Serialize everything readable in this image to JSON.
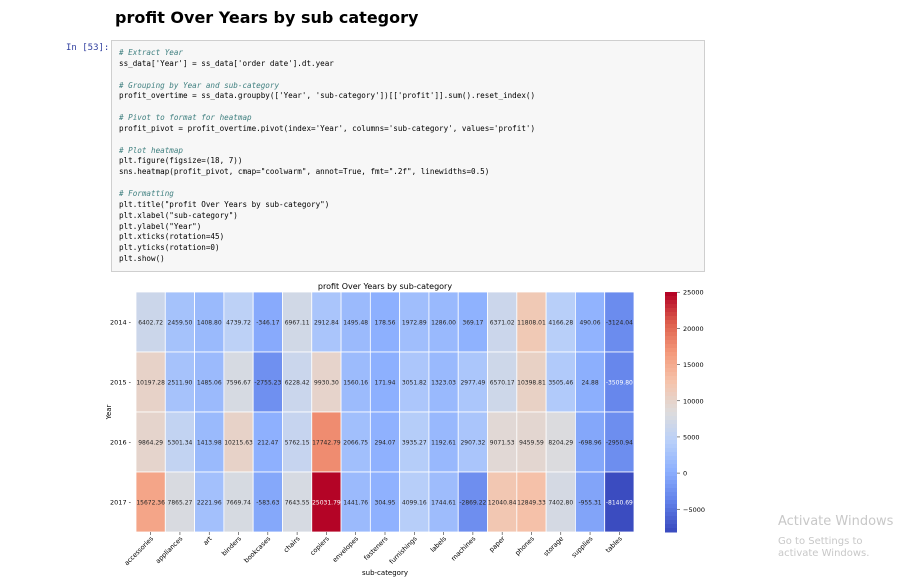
{
  "notebook": {
    "heading": "profit Over Years by sub category",
    "prompt": "In [53]:",
    "code_lines": [
      {
        "t": "# Extract Year",
        "c": true
      },
      {
        "t": "ss_data['Year'] = ss_data['order date'].dt.year"
      },
      {
        "t": ""
      },
      {
        "t": "# Grouping by Year and sub-category",
        "c": true
      },
      {
        "t": "profit_overtime = ss_data.groupby(['Year', 'sub-category'])[['profit']].sum().reset_index()"
      },
      {
        "t": ""
      },
      {
        "t": "# Pivot to format for heatmap",
        "c": true
      },
      {
        "t": "profit_pivot = profit_overtime.pivot(index='Year', columns='sub-category', values='profit')"
      },
      {
        "t": ""
      },
      {
        "t": "# Plot heatmap",
        "c": true
      },
      {
        "t": "plt.figure(figsize=(18, 7))"
      },
      {
        "t": "sns.heatmap(profit_pivot, cmap=\"coolwarm\", annot=True, fmt=\".2f\", linewidths=0.5)"
      },
      {
        "t": ""
      },
      {
        "t": "# Formatting",
        "c": true
      },
      {
        "t": "plt.title(\"profit Over Years by sub-category\")"
      },
      {
        "t": "plt.xlabel(\"sub-category\")"
      },
      {
        "t": "plt.ylabel(\"Year\")"
      },
      {
        "t": "plt.xticks(rotation=45)"
      },
      {
        "t": "plt.yticks(rotation=0)"
      },
      {
        "t": "plt.show()"
      }
    ]
  },
  "chart_data": {
    "type": "heatmap",
    "title": "profit Over Years by sub-category",
    "xlabel": "sub-category",
    "ylabel": "Year",
    "cmap": "coolwarm",
    "categories": [
      "accessories",
      "appliances",
      "art",
      "binders",
      "bookcases",
      "chairs",
      "copiers",
      "envelopes",
      "fasteners",
      "furnishings",
      "labels",
      "machines",
      "paper",
      "phones",
      "storage",
      "supplies",
      "tables"
    ],
    "rows": [
      "2014",
      "2015",
      "2016",
      "2017"
    ],
    "values": [
      [
        6402.72,
        2459.5,
        1408.8,
        4739.72,
        -346.17,
        6967.11,
        2912.84,
        1495.48,
        178.56,
        1972.89,
        1286.0,
        369.17,
        6371.02,
        11808.01,
        4166.28,
        490.06,
        -3124.04
      ],
      [
        10197.28,
        2511.9,
        1485.06,
        7596.67,
        -2755.23,
        6228.42,
        9930.3,
        1560.16,
        171.94,
        3051.82,
        1323.03,
        2977.49,
        6570.17,
        10398.81,
        3505.46,
        24.88,
        -3509.8
      ],
      [
        9864.29,
        5301.34,
        1413.98,
        10215.63,
        212.47,
        5762.15,
        17742.79,
        2066.75,
        294.07,
        3935.27,
        1192.61,
        2907.32,
        9071.53,
        9459.59,
        8204.29,
        -698.96,
        -2950.94
      ],
      [
        15672.36,
        7865.27,
        2221.96,
        7669.74,
        -583.63,
        7643.55,
        25031.79,
        1441.76,
        304.95,
        4099.16,
        1744.61,
        -2869.22,
        12040.84,
        12849.33,
        7402.8,
        -955.31,
        -8140.69
      ]
    ],
    "colorbar": {
      "min": -8140.69,
      "max": 25031.79,
      "ticks": [
        25000,
        20000,
        15000,
        10000,
        5000,
        0,
        -5000
      ]
    }
  },
  "watermark": {
    "line1": "Activate Windows",
    "line2": "Go to Settings to activate Windows."
  }
}
